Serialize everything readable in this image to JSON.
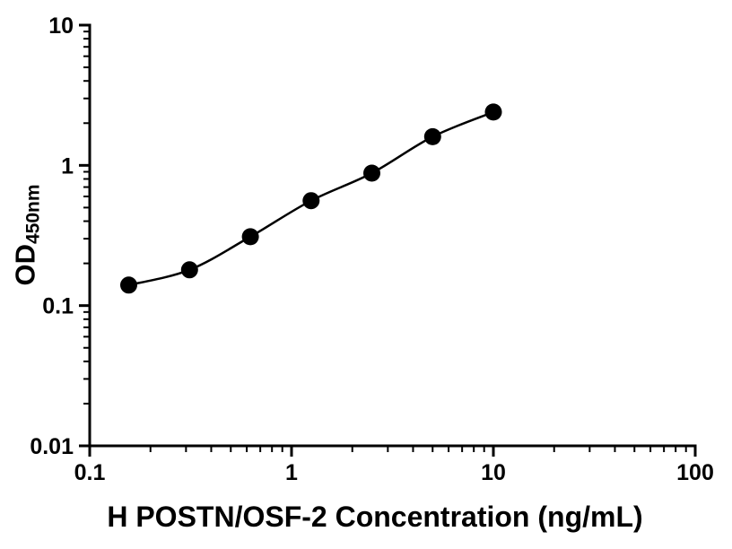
{
  "chart_data": {
    "type": "scatter",
    "title": "",
    "xlabel": "H POSTN/OSF-2 Concentration (ng/mL)",
    "ylabel_main": "OD",
    "ylabel_sub": "450nm",
    "x_scale": "log",
    "y_scale": "log",
    "xlim": [
      0.1,
      100
    ],
    "ylim": [
      0.01,
      10
    ],
    "x": [
      0.156,
      0.3125,
      0.625,
      1.25,
      2.5,
      5,
      10
    ],
    "y": [
      0.14,
      0.18,
      0.31,
      0.56,
      0.88,
      1.6,
      2.4
    ],
    "xticks": [
      {
        "v": 0.1,
        "label": "0.1"
      },
      {
        "v": 1,
        "label": "1"
      },
      {
        "v": 10,
        "label": "10"
      },
      {
        "v": 100,
        "label": "100"
      }
    ],
    "yticks": [
      {
        "v": 0.01,
        "label": "0.01"
      },
      {
        "v": 0.1,
        "label": "0.1"
      },
      {
        "v": 1,
        "label": "1"
      },
      {
        "v": 10,
        "label": "10"
      }
    ],
    "grid": "off",
    "legend": "none",
    "color": "#000000",
    "marker": "circle",
    "line": "smooth"
  }
}
